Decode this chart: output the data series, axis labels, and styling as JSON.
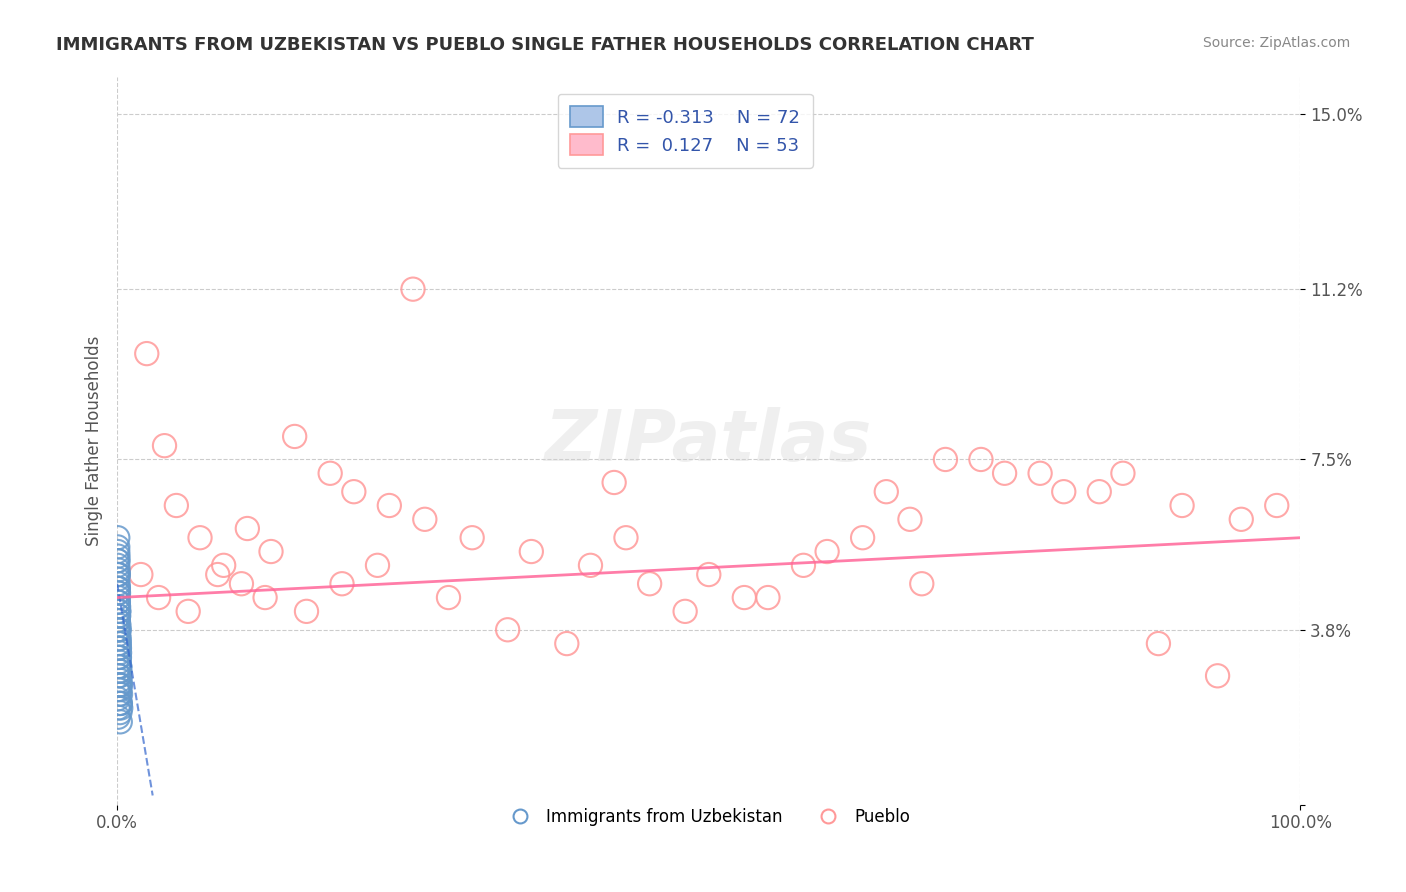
{
  "title": "IMMIGRANTS FROM UZBEKISTAN VS PUEBLO SINGLE FATHER HOUSEHOLDS CORRELATION CHART",
  "source_text": "Source: ZipAtlas.com",
  "xlabel": "",
  "ylabel": "Single Father Households",
  "xlim": [
    0,
    100
  ],
  "ylim": [
    0,
    15.8
  ],
  "yticks": [
    0,
    3.8,
    7.5,
    11.2,
    15.0
  ],
  "ytick_labels": [
    "",
    "3.8%",
    "7.5%",
    "11.2%",
    "15.0%"
  ],
  "xticks": [
    0,
    100
  ],
  "xtick_labels": [
    "0.0%",
    "100.0%"
  ],
  "blue_R": -0.313,
  "blue_N": 72,
  "pink_R": 0.127,
  "pink_N": 53,
  "blue_color": "#6699CC",
  "pink_color": "#FF9999",
  "blue_trend_color": "#3366CC",
  "pink_trend_color": "#FF6699",
  "watermark_text": "ZIPatlas",
  "legend_label_blue": "Immigrants from Uzbekistan",
  "legend_label_pink": "Pueblo",
  "background_color": "#FFFFFF",
  "grid_color": "#CCCCCC",
  "title_color": "#333333",
  "axis_label_color": "#555555",
  "blue_scatter_x": [
    0.05,
    0.08,
    0.1,
    0.12,
    0.15,
    0.18,
    0.2,
    0.22,
    0.25,
    0.28,
    0.3,
    0.05,
    0.08,
    0.1,
    0.12,
    0.05,
    0.07,
    0.09,
    0.11,
    0.14,
    0.16,
    0.19,
    0.21,
    0.24,
    0.27,
    0.05,
    0.06,
    0.08,
    0.1,
    0.13,
    0.15,
    0.17,
    0.2,
    0.23,
    0.26,
    0.05,
    0.06,
    0.07,
    0.09,
    0.11,
    0.13,
    0.16,
    0.18,
    0.21,
    0.24,
    0.05,
    0.06,
    0.07,
    0.08,
    0.1,
    0.12,
    0.14,
    0.17,
    0.19,
    0.22,
    0.25,
    0.05,
    0.06,
    0.07,
    0.08,
    0.09,
    0.11,
    0.13,
    0.15,
    0.18,
    0.2,
    0.23,
    0.26,
    0.05,
    0.06,
    0.07,
    0.08
  ],
  "blue_scatter_y": [
    5.2,
    4.8,
    4.5,
    4.2,
    3.9,
    3.6,
    3.3,
    3.0,
    2.7,
    2.4,
    2.1,
    5.5,
    5.1,
    4.7,
    4.3,
    5.8,
    5.4,
    5.0,
    4.6,
    4.2,
    3.8,
    3.4,
    3.0,
    2.6,
    2.2,
    4.9,
    4.6,
    4.3,
    4.0,
    3.7,
    3.4,
    3.1,
    2.8,
    2.5,
    2.2,
    5.3,
    5.0,
    4.7,
    4.4,
    4.1,
    3.8,
    3.5,
    3.2,
    2.9,
    2.6,
    5.6,
    5.3,
    5.0,
    4.7,
    4.4,
    4.1,
    3.8,
    3.5,
    3.2,
    2.9,
    2.6,
    4.0,
    3.8,
    3.6,
    3.4,
    3.2,
    3.0,
    2.8,
    2.6,
    2.4,
    2.2,
    2.0,
    1.8,
    2.5,
    2.3,
    2.1,
    1.9
  ],
  "pink_scatter_x": [
    2.0,
    3.5,
    5.0,
    7.0,
    9.0,
    11.0,
    13.0,
    15.0,
    18.0,
    20.0,
    23.0,
    26.0,
    30.0,
    35.0,
    40.0,
    45.0,
    50.0,
    55.0,
    60.0,
    65.0,
    70.0,
    75.0,
    80.0,
    85.0,
    90.0,
    95.0,
    2.5,
    4.0,
    6.0,
    8.5,
    10.5,
    12.5,
    16.0,
    19.0,
    22.0,
    28.0,
    33.0,
    38.0,
    43.0,
    48.0,
    53.0,
    58.0,
    63.0,
    68.0,
    73.0,
    78.0,
    83.0,
    88.0,
    93.0,
    98.0,
    25.0,
    42.0,
    67.0
  ],
  "pink_scatter_y": [
    5.0,
    4.5,
    6.5,
    5.8,
    5.2,
    6.0,
    5.5,
    8.0,
    7.2,
    6.8,
    6.5,
    6.2,
    5.8,
    5.5,
    5.2,
    4.8,
    5.0,
    4.5,
    5.5,
    6.8,
    7.5,
    7.2,
    6.8,
    7.2,
    6.5,
    6.2,
    9.8,
    7.8,
    4.2,
    5.0,
    4.8,
    4.5,
    4.2,
    4.8,
    5.2,
    4.5,
    3.8,
    3.5,
    5.8,
    4.2,
    4.5,
    5.2,
    5.8,
    4.8,
    7.5,
    7.2,
    6.8,
    3.5,
    2.8,
    6.5,
    11.2,
    7.0,
    6.2
  ],
  "blue_trend_x": [
    0,
    3.0
  ],
  "blue_trend_y": [
    4.8,
    0.2
  ],
  "pink_trend_x": [
    0,
    100
  ],
  "pink_trend_y": [
    4.5,
    5.8
  ]
}
